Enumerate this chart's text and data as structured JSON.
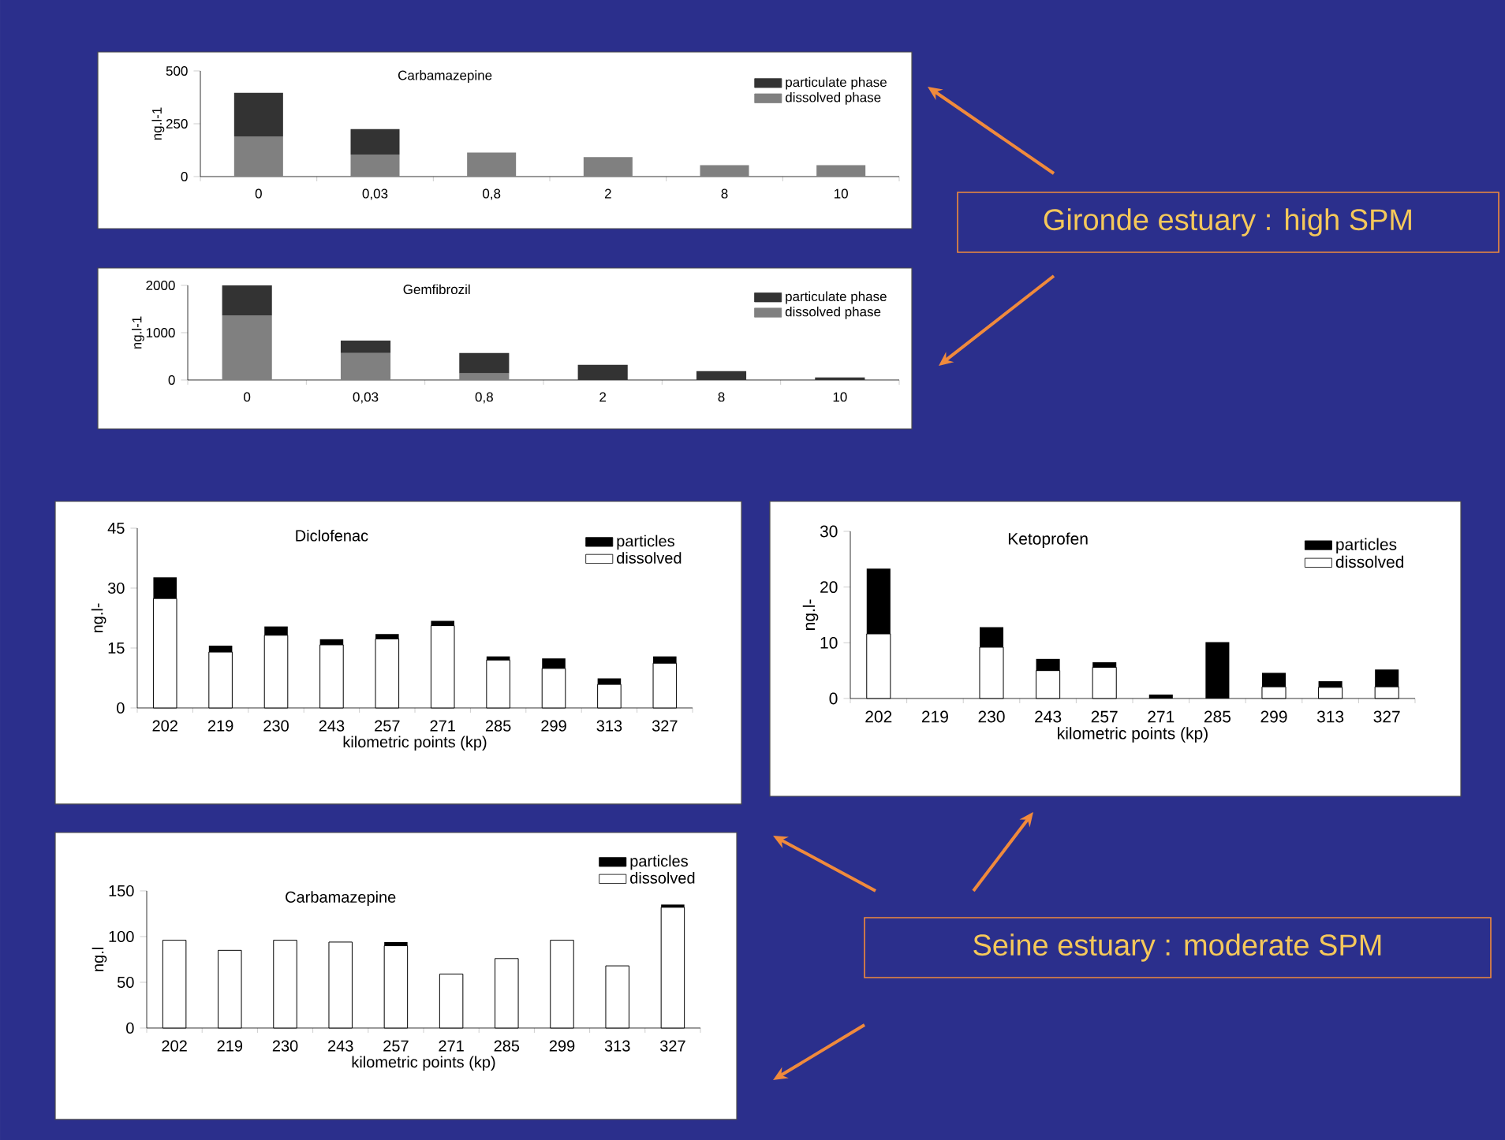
{
  "chart_data": [
    {
      "type": "bar",
      "stacked": true,
      "title": "Carbamazepine",
      "ylabel": "ng.l-1",
      "categories": [
        "0",
        "0,03",
        "0,8",
        "2",
        "8",
        "10"
      ],
      "ylim": [
        0,
        500
      ],
      "yticks": [
        0,
        250,
        500
      ],
      "legend": "top right",
      "series": [
        {
          "name": "dissolved phase",
          "color": "#808080",
          "values": [
            190,
            104,
            114,
            92,
            54,
            54
          ]
        },
        {
          "name": "particulate phase",
          "color": "#333333",
          "values": [
            206,
            121,
            null,
            null,
            null,
            null
          ]
        }
      ]
    },
    {
      "type": "bar",
      "stacked": true,
      "title": "Gemfibrozil",
      "ylabel": "ng.l-1",
      "categories": [
        "0",
        "0,03",
        "0,8",
        "2",
        "8",
        "10"
      ],
      "ylim": [
        0,
        2000
      ],
      "yticks": [
        0,
        1000,
        2000
      ],
      "legend": "top right",
      "series": [
        {
          "name": "dissolved phase",
          "color": "#808080",
          "values": [
            1363,
            571,
            143,
            null,
            null,
            null
          ]
        },
        {
          "name": "particulate phase",
          "color": "#333333",
          "values": [
            637,
            264,
            428,
            319,
            187,
            55
          ]
        }
      ]
    },
    {
      "type": "bar",
      "stacked": true,
      "title": "Diclofenac",
      "ylabel": "ng.l-",
      "xlabel": "kilometric points (kp)",
      "categories": [
        "202",
        "219",
        "230",
        "243",
        "257",
        "271",
        "285",
        "299",
        "313",
        "327"
      ],
      "ylim": [
        0,
        45
      ],
      "yticks": [
        0,
        15,
        30,
        45
      ],
      "legend": "top right",
      "series": [
        {
          "name": "dissolved",
          "color": "#ffffff",
          "values": [
            27.4,
            14.0,
            18.2,
            15.8,
            17.3,
            20.6,
            12.0,
            9.9,
            5.9,
            11.2
          ]
        },
        {
          "name": "particles",
          "color": "#000000",
          "values": [
            5.3,
            1.6,
            2.2,
            1.4,
            1.2,
            1.2,
            0.9,
            2.5,
            1.5,
            1.7
          ]
        }
      ]
    },
    {
      "type": "bar",
      "stacked": true,
      "title": "Ketoprofen",
      "ylabel": "ng.l-",
      "xlabel": "kilometric points (kp)",
      "categories": [
        "202",
        "219",
        "230",
        "243",
        "257",
        "271",
        "285",
        "299",
        "313",
        "327"
      ],
      "ylim": [
        0,
        30
      ],
      "yticks": [
        0,
        10,
        20,
        30
      ],
      "legend": "top right",
      "series": [
        {
          "name": "dissolved",
          "color": "#ffffff",
          "values": [
            11.6,
            null,
            9.2,
            5.0,
            5.6,
            null,
            null,
            2.1,
            2.0,
            2.1
          ]
        },
        {
          "name": "particles",
          "color": "#000000",
          "values": [
            11.7,
            null,
            3.6,
            2.1,
            0.9,
            0.7,
            10.1,
            2.5,
            1.1,
            3.1
          ]
        }
      ]
    },
    {
      "type": "bar",
      "stacked": true,
      "title": "Carbamazepine",
      "ylabel": "ng.l",
      "xlabel": "kilometric points (kp)",
      "categories": [
        "202",
        "219",
        "230",
        "243",
        "257",
        "271",
        "285",
        "299",
        "313",
        "327"
      ],
      "ylim": [
        0,
        150
      ],
      "yticks": [
        0,
        50,
        100,
        150
      ],
      "legend": "top",
      "series": [
        {
          "name": "dissolved",
          "color": "#ffffff",
          "values": [
            96,
            85,
            96,
            94,
            90,
            59,
            76,
            96,
            68,
            132
          ]
        },
        {
          "name": "particles",
          "color": "#000000",
          "values": [
            null,
            null,
            null,
            null,
            4,
            null,
            null,
            null,
            null,
            3
          ]
        }
      ]
    },
    {
      "type": "other",
      "title": "Gironde estuary : high SPM"
    },
    {
      "type": "other",
      "title": "Seine estuary : moderate SPM"
    }
  ]
}
